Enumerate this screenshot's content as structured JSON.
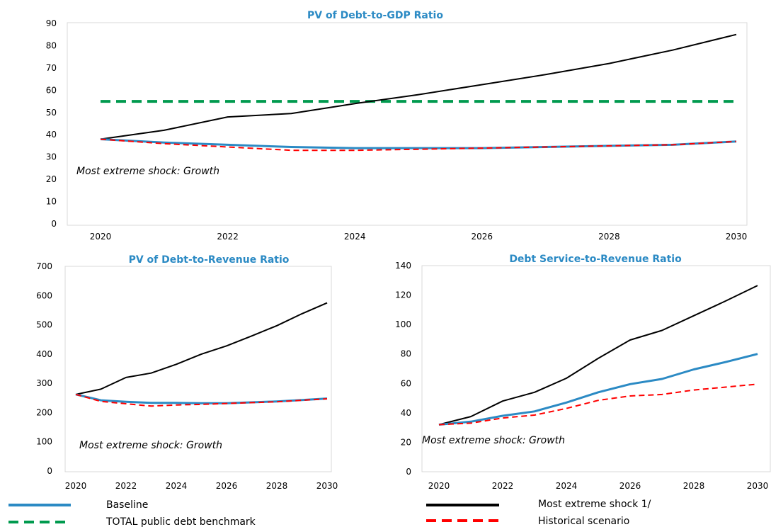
{
  "legend": [
    {
      "label": "Baseline",
      "color": "#2b8ac4",
      "style": "solid"
    },
    {
      "label": "TOTAL public debt benchmark",
      "color": "#009a4e",
      "style": "dashed"
    },
    {
      "label": "Most extreme shock 1/",
      "color": "#000000",
      "style": "solid"
    },
    {
      "label": "Historical scenario",
      "color": "#ff0000",
      "style": "dashed"
    }
  ],
  "chart_data": [
    {
      "type": "line",
      "title": "PV of Debt-to-GDP Ratio",
      "annotation": "Most extreme shock: Growth",
      "x": [
        2020,
        2021,
        2022,
        2023,
        2024,
        2025,
        2026,
        2027,
        2028,
        2029,
        2030
      ],
      "x_ticks": [
        "2020",
        "2022",
        "2024",
        "2026",
        "2028",
        "2030"
      ],
      "ylim": [
        0,
        90
      ],
      "y_ticks": [
        "0",
        "10",
        "20",
        "30",
        "40",
        "50",
        "60",
        "70",
        "80",
        "90"
      ],
      "series": [
        {
          "name": "Baseline",
          "values": [
            38,
            36.5,
            35.5,
            34.5,
            34,
            34,
            34,
            34.5,
            35,
            35.5,
            37
          ]
        },
        {
          "name": "TOTAL public debt benchmark",
          "values": [
            55,
            55,
            55,
            55,
            55,
            55,
            55,
            55,
            55,
            55,
            55
          ]
        },
        {
          "name": "Most extreme shock 1/",
          "values": [
            38,
            42,
            48,
            49.5,
            54,
            58,
            62.5,
            67,
            72,
            78,
            85
          ]
        },
        {
          "name": "Historical scenario",
          "values": [
            38,
            36,
            34.5,
            33,
            33,
            33.5,
            34,
            34.5,
            35,
            35.5,
            37
          ]
        }
      ]
    },
    {
      "type": "line",
      "title": "PV of Debt-to-Revenue Ratio",
      "annotation": "Most extreme shock: Growth",
      "x": [
        2020,
        2021,
        2022,
        2023,
        2024,
        2025,
        2026,
        2027,
        2028,
        2029,
        2030
      ],
      "x_ticks": [
        "2020",
        "2022",
        "2024",
        "2026",
        "2028",
        "2030"
      ],
      "ylim": [
        0,
        700
      ],
      "y_ticks": [
        "0",
        "100",
        "200",
        "300",
        "400",
        "500",
        "600",
        "700"
      ],
      "series": [
        {
          "name": "Baseline",
          "values": [
            262,
            242,
            237,
            233,
            233,
            232,
            232,
            235,
            238,
            243,
            248
          ]
        },
        {
          "name": "Most extreme shock 1/",
          "values": [
            262,
            280,
            320,
            335,
            365,
            400,
            428,
            462,
            497,
            538,
            575
          ]
        },
        {
          "name": "Historical scenario",
          "values": [
            262,
            238,
            230,
            222,
            226,
            228,
            231,
            234,
            237,
            242,
            247
          ]
        }
      ]
    },
    {
      "type": "line",
      "title": "Debt Service-to-Revenue Ratio",
      "annotation": "Most extreme shock: Growth",
      "x": [
        2020,
        2021,
        2022,
        2023,
        2024,
        2025,
        2026,
        2027,
        2028,
        2029,
        2030
      ],
      "x_ticks": [
        "2020",
        "2022",
        "2024",
        "2026",
        "2028",
        "2030"
      ],
      "ylim": [
        0,
        140
      ],
      "y_ticks": [
        "0",
        "20",
        "40",
        "60",
        "80",
        "100",
        "120",
        "140"
      ],
      "series": [
        {
          "name": "Baseline",
          "values": [
            32,
            34,
            38,
            41,
            47,
            54,
            59.5,
            63,
            69.5,
            74.5,
            80
          ]
        },
        {
          "name": "Most extreme shock 1/",
          "values": [
            32,
            37.5,
            48,
            54,
            63.5,
            77,
            89.5,
            96,
            106,
            116,
            126.5
          ]
        },
        {
          "name": "Historical scenario",
          "values": [
            32,
            33,
            36.5,
            38.5,
            43,
            48.5,
            51.5,
            52.5,
            55.5,
            57.5,
            59.5
          ]
        }
      ]
    }
  ]
}
